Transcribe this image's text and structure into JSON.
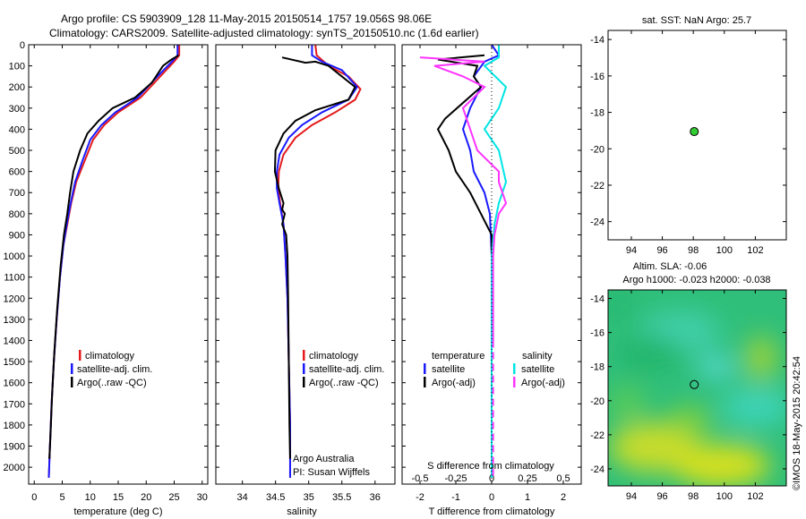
{
  "header": {
    "line1": "Argo profile: CS 5903909_128 11-May-2015 20150514_1757 19.056S 98.06E",
    "line2": "Climatology: CARS2009. Satellite-adjusted climatology: synTS_20150510.nc (1.6d earlier)"
  },
  "colors": {
    "climatology": "#e41a1c",
    "satellite": "#1a1aff",
    "argo": "#000000",
    "sal_satellite": "#00e5e5",
    "sal_argo": "#ff33ff",
    "marker": "#33cc33"
  },
  "chart_data": [
    {
      "type": "line",
      "xlabel": "temperature (deg C)",
      "ylabel": "",
      "xlim": [
        -1,
        31
      ],
      "ylim": [
        2080,
        0
      ],
      "xticks": [
        0,
        5,
        10,
        15,
        20,
        25,
        30
      ],
      "yticks": [
        0,
        100,
        200,
        300,
        400,
        500,
        600,
        700,
        800,
        900,
        1000,
        1100,
        1200,
        1300,
        1400,
        1500,
        1600,
        1700,
        1800,
        1900,
        2000
      ],
      "legend": [
        "climatology",
        "satellite-adj. clim.",
        "Argo(..raw -QC)"
      ],
      "legend_location": "lower-right",
      "series": [
        {
          "name": "climatology",
          "color_key": "climatology",
          "points": [
            [
              25.9,
              0
            ],
            [
              25.9,
              50
            ],
            [
              25,
              80
            ],
            [
              22.5,
              150
            ],
            [
              19,
              250
            ],
            [
              15,
              320
            ],
            [
              12.5,
              380
            ],
            [
              10.5,
              450
            ],
            [
              9,
              550
            ],
            [
              7.5,
              650
            ],
            [
              6.6,
              750
            ],
            [
              5.9,
              850
            ],
            [
              5.2,
              950
            ],
            [
              4.6,
              1100
            ],
            [
              4,
              1300
            ],
            [
              3.5,
              1500
            ],
            [
              3.1,
              1700
            ],
            [
              2.8,
              1900
            ],
            [
              2.6,
              2050
            ]
          ]
        },
        {
          "name": "satellite-adj. clim.",
          "color_key": "satellite",
          "points": [
            [
              25.6,
              0
            ],
            [
              25.6,
              50
            ],
            [
              24.6,
              80
            ],
            [
              22,
              150
            ],
            [
              18.5,
              250
            ],
            [
              14.5,
              320
            ],
            [
              12,
              380
            ],
            [
              10,
              450
            ],
            [
              8.6,
              550
            ],
            [
              7.3,
              650
            ],
            [
              6.5,
              750
            ],
            [
              5.8,
              850
            ],
            [
              5.2,
              950
            ],
            [
              4.6,
              1100
            ],
            [
              4,
              1300
            ],
            [
              3.5,
              1500
            ],
            [
              3.1,
              1700
            ],
            [
              2.8,
              1900
            ],
            [
              2.6,
              2050
            ]
          ]
        },
        {
          "name": "Argo(..raw -QC)",
          "color_key": "argo",
          "points": [
            [
              25.8,
              50
            ],
            [
              24.5,
              70
            ],
            [
              23,
              100
            ],
            [
              21,
              180
            ],
            [
              18,
              250
            ],
            [
              14,
              300
            ],
            [
              11.5,
              360
            ],
            [
              9.5,
              420
            ],
            [
              8.2,
              500
            ],
            [
              7,
              600
            ],
            [
              6.4,
              700
            ],
            [
              5.9,
              800
            ],
            [
              5.3,
              900
            ],
            [
              4.7,
              1050
            ],
            [
              4.1,
              1250
            ],
            [
              3.6,
              1450
            ],
            [
              3.2,
              1650
            ],
            [
              2.9,
              1850
            ],
            [
              2.7,
              1960
            ]
          ]
        }
      ]
    },
    {
      "type": "line",
      "xlabel": "salinity",
      "ylabel": "",
      "xlim": [
        33.6,
        36.3
      ],
      "ylim": [
        2080,
        0
      ],
      "xticks": [
        34,
        34.5,
        35,
        35.5,
        36
      ],
      "legend": [
        "climatology",
        "satellite-adj. clim.",
        "Argo(..raw -QC)"
      ],
      "legend_location": "lower-right",
      "annotation": [
        "Argo Australia",
        "PI: Susan Wijffels"
      ],
      "series": [
        {
          "name": "climatology",
          "color_key": "climatology",
          "points": [
            [
              35.1,
              0
            ],
            [
              35.12,
              50
            ],
            [
              35.3,
              100
            ],
            [
              35.6,
              150
            ],
            [
              35.78,
              210
            ],
            [
              35.7,
              260
            ],
            [
              35.4,
              320
            ],
            [
              35.05,
              380
            ],
            [
              34.8,
              440
            ],
            [
              34.62,
              520
            ],
            [
              34.55,
              600
            ],
            [
              34.54,
              680
            ],
            [
              34.57,
              750
            ],
            [
              34.62,
              850
            ],
            [
              34.65,
              1000
            ],
            [
              34.68,
              1200
            ],
            [
              34.7,
              1500
            ],
            [
              34.72,
              1800
            ],
            [
              34.72,
              2050
            ]
          ]
        },
        {
          "name": "satellite-adj. clim.",
          "color_key": "satellite",
          "points": [
            [
              35.05,
              0
            ],
            [
              35.05,
              50
            ],
            [
              35.2,
              80
            ],
            [
              35.5,
              120
            ],
            [
              35.73,
              200
            ],
            [
              35.6,
              260
            ],
            [
              35.2,
              320
            ],
            [
              34.9,
              380
            ],
            [
              34.7,
              440
            ],
            [
              34.56,
              520
            ],
            [
              34.52,
              600
            ],
            [
              34.52,
              680
            ],
            [
              34.56,
              750
            ],
            [
              34.62,
              850
            ],
            [
              34.65,
              1000
            ],
            [
              34.68,
              1200
            ],
            [
              34.7,
              1500
            ],
            [
              34.72,
              1800
            ],
            [
              34.72,
              2050
            ]
          ]
        },
        {
          "name": "Argo(..raw -QC)",
          "color_key": "argo",
          "points": [
            [
              34.6,
              60
            ],
            [
              34.95,
              85
            ],
            [
              35.1,
              80
            ],
            [
              35.3,
              100
            ],
            [
              35.5,
              150
            ],
            [
              35.7,
              200
            ],
            [
              35.6,
              260
            ],
            [
              35.1,
              310
            ],
            [
              34.8,
              360
            ],
            [
              34.62,
              420
            ],
            [
              34.5,
              500
            ],
            [
              34.49,
              600
            ],
            [
              34.55,
              680
            ],
            [
              34.62,
              750
            ],
            [
              34.6,
              780
            ],
            [
              34.64,
              800
            ],
            [
              34.6,
              850
            ],
            [
              34.66,
              900
            ],
            [
              34.68,
              1000
            ],
            [
              34.69,
              1200
            ],
            [
              34.7,
              1500
            ],
            [
              34.71,
              1800
            ],
            [
              34.72,
              1960
            ]
          ]
        }
      ]
    },
    {
      "type": "line",
      "xlabel": "T difference from climatology",
      "xlabel2": "S difference from climatology",
      "ylabel": "",
      "xlim": [
        -2.5,
        2.5
      ],
      "ylim": [
        2080,
        0
      ],
      "xticks": [
        -2,
        -1,
        0,
        1,
        2
      ],
      "xticks_s": [
        -0.5,
        -0.25,
        0,
        0.25,
        0.5
      ],
      "xticks_s_labels": [
        "-0.5",
        "-0.25",
        "0",
        "0.25",
        "0.5"
      ],
      "legend_left_title": "temperature",
      "legend_right_title": "salinity",
      "legend_left": [
        "satellite",
        "Argo(-adj)"
      ],
      "legend_right": [
        "satellite",
        "Argo(-adj)"
      ],
      "legend_location": "lower-center",
      "series": [
        {
          "name": "T satellite",
          "color_key": "satellite",
          "dashed_below": 1400,
          "points": [
            [
              0,
              0
            ],
            [
              0.2,
              50
            ],
            [
              -0.2,
              80
            ],
            [
              -0.5,
              150
            ],
            [
              -0.3,
              200
            ],
            [
              -0.6,
              300
            ],
            [
              -0.8,
              400
            ],
            [
              -0.6,
              500
            ],
            [
              -0.5,
              600
            ],
            [
              -0.2,
              700
            ],
            [
              -0.05,
              800
            ],
            [
              0,
              1000
            ],
            [
              0,
              1400
            ],
            [
              0,
              2050
            ]
          ]
        },
        {
          "name": "T Argo(-adj)",
          "color_key": "argo",
          "points": [
            [
              -0.2,
              50
            ],
            [
              -1.5,
              70
            ],
            [
              -0.4,
              100
            ],
            [
              -0.5,
              150
            ],
            [
              -0.3,
              200
            ],
            [
              -1.3,
              350
            ],
            [
              -1.5,
              400
            ],
            [
              -1.2,
              500
            ],
            [
              -1.0,
              600
            ],
            [
              -0.6,
              700
            ],
            [
              -0.3,
              800
            ],
            [
              0,
              900
            ],
            [
              0,
              1960
            ]
          ]
        },
        {
          "name": "S satellite",
          "color_key": "sal_satellite",
          "scale": 0.25,
          "points": [
            [
              0.05,
              0
            ],
            [
              0.05,
              60
            ],
            [
              -0.05,
              100
            ],
            [
              0.1,
              200
            ],
            [
              0.05,
              300
            ],
            [
              -0.05,
              400
            ],
            [
              0.05,
              500
            ],
            [
              0.1,
              650
            ],
            [
              0.05,
              750
            ],
            [
              0.02,
              850
            ],
            [
              0,
              1000
            ],
            [
              0,
              2050
            ]
          ]
        },
        {
          "name": "S Argo(-adj)",
          "color_key": "sal_argo",
          "scale": 0.25,
          "dashed_below": 1400,
          "points": [
            [
              -0.5,
              60
            ],
            [
              -0.05,
              80
            ],
            [
              -0.4,
              100
            ],
            [
              -0.2,
              150
            ],
            [
              -0.05,
              200
            ],
            [
              -0.2,
              300
            ],
            [
              -0.15,
              400
            ],
            [
              -0.1,
              500
            ],
            [
              0.05,
              600
            ],
            [
              0.05,
              650
            ],
            [
              0.1,
              750
            ],
            [
              0.05,
              800
            ],
            [
              0.02,
              900
            ],
            [
              0.01,
              1000
            ],
            [
              0.01,
              1400
            ],
            [
              0.01,
              2050
            ]
          ]
        }
      ]
    },
    {
      "type": "scatter",
      "title": "sat. SST: NaN Argo: 25.7",
      "xlim": [
        92.5,
        104
      ],
      "ylim": [
        -25,
        -13.5
      ],
      "xticks": [
        94,
        96,
        98,
        100,
        102
      ],
      "yticks": [
        -14,
        -16,
        -18,
        -20,
        -22,
        -24
      ],
      "points": [
        {
          "x": 98.06,
          "y": -19.056
        }
      ]
    },
    {
      "type": "heatmap",
      "title": "Altim. SLA: -0.06",
      "subtitle": "Argo h1000: -0.023 h2000: -0.038",
      "xlim": [
        92.5,
        104
      ],
      "ylim": [
        -25,
        -13.5
      ],
      "xticks": [
        94,
        96,
        98,
        100,
        102
      ],
      "yticks": [
        -14,
        -16,
        -18,
        -20,
        -22,
        -24
      ],
      "points": [
        {
          "x": 98.06,
          "y": -19.056
        }
      ]
    }
  ],
  "credit": "©IMOS 18-May-2015 20:42:54"
}
